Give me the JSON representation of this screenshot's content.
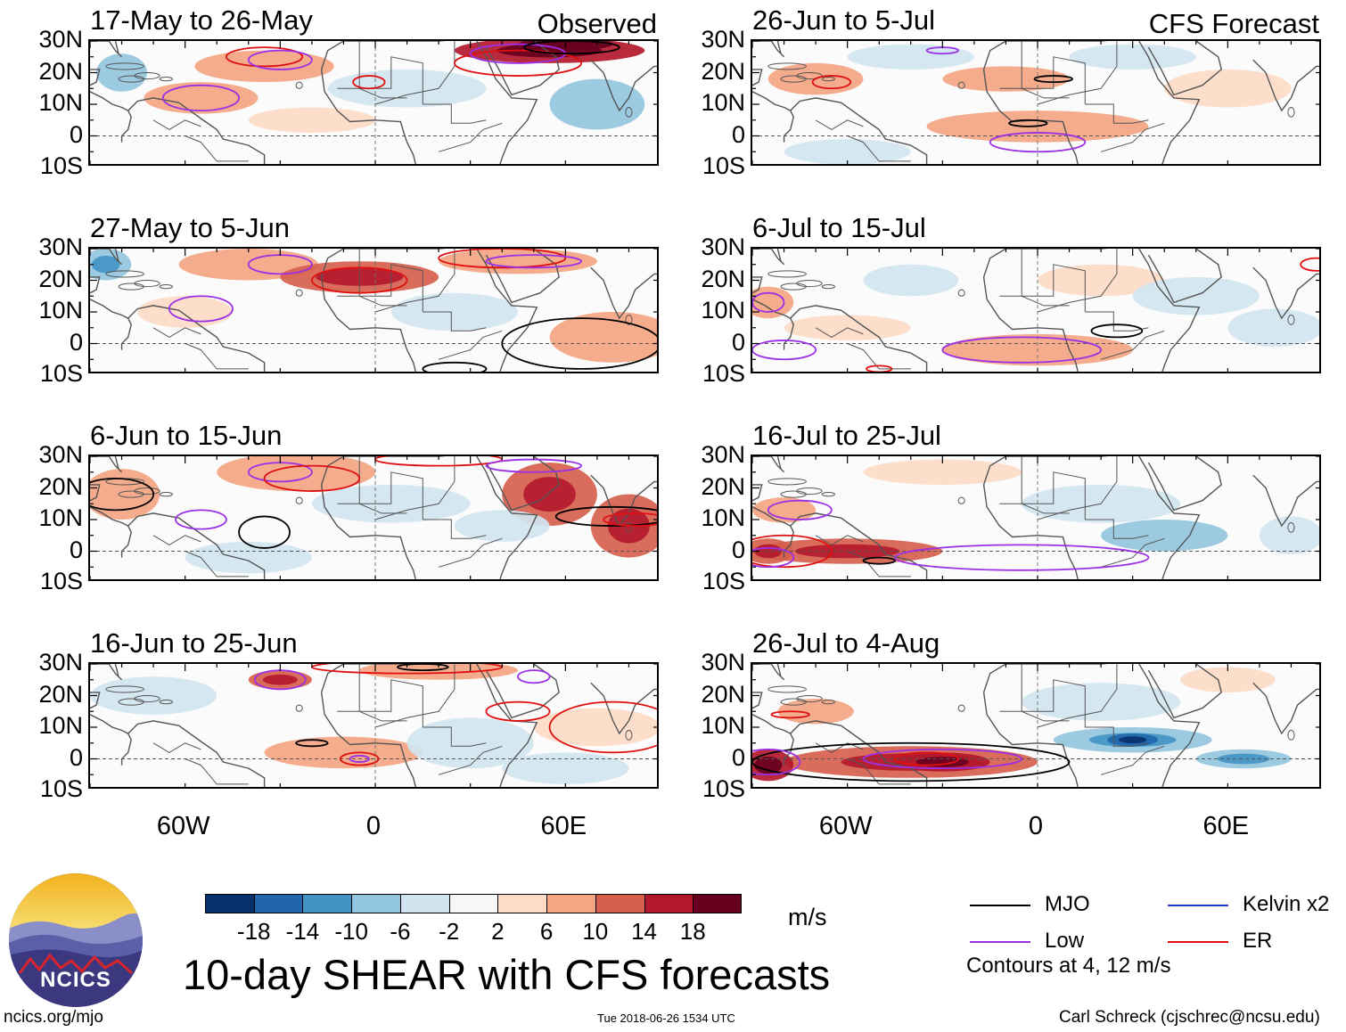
{
  "colors": {
    "mjo": "#000000",
    "low": "#9b30e6",
    "er": "#e01010",
    "kelvin": "#1a3ccc",
    "coast": "#555555"
  },
  "axis": {
    "lat_labels": [
      "30N",
      "20N",
      "10N",
      "0",
      "10S"
    ],
    "lon_labels": [
      "60W",
      "0",
      "60E"
    ]
  },
  "left_column_tag": "Observed",
  "right_column_tag": "CFS Forecast",
  "panels": [
    {
      "id": "p1",
      "title": "17-May to 26-May",
      "kind": "Observed"
    },
    {
      "id": "p2",
      "title": "27-May to 5-Jun",
      "kind": "Observed"
    },
    {
      "id": "p3",
      "title": "6-Jun to 15-Jun",
      "kind": "Observed"
    },
    {
      "id": "p4",
      "title": "16-Jun to 25-Jun",
      "kind": "Observed"
    },
    {
      "id": "p5",
      "title": "26-Jun to 5-Jul",
      "kind": "CFS Forecast"
    },
    {
      "id": "p6",
      "title": "6-Jul to 15-Jul",
      "kind": "CFS Forecast"
    },
    {
      "id": "p7",
      "title": "16-Jul to 25-Jul",
      "kind": "CFS Forecast"
    },
    {
      "id": "p8",
      "title": "26-Jul to 4-Aug",
      "kind": "CFS Forecast"
    }
  ],
  "chart_data": {
    "type": "heatmap",
    "title": "10-day SHEAR with CFS forecasts",
    "units": "m/s",
    "lon_range": [
      -90,
      90
    ],
    "lat_range": [
      -10,
      30
    ],
    "colorbar": {
      "tick_labels": [
        "-18",
        "-14",
        "-10",
        "-6",
        "-2",
        "2",
        "6",
        "10",
        "14",
        "18"
      ],
      "bins": [
        {
          "from": -22,
          "to": -18,
          "color": "#08306b"
        },
        {
          "from": -18,
          "to": -14,
          "color": "#2166ac"
        },
        {
          "from": -14,
          "to": -10,
          "color": "#4393c3"
        },
        {
          "from": -10,
          "to": -6,
          "color": "#92c5de"
        },
        {
          "from": -6,
          "to": -2,
          "color": "#d1e5f0"
        },
        {
          "from": -2,
          "to": 2,
          "color": "#f7f7f7"
        },
        {
          "from": 2,
          "to": 6,
          "color": "#fddbc7"
        },
        {
          "from": 6,
          "to": 10,
          "color": "#f4a582"
        },
        {
          "from": 10,
          "to": 14,
          "color": "#d6604d"
        },
        {
          "from": 14,
          "to": 18,
          "color": "#b2182b"
        },
        {
          "from": 18,
          "to": 22,
          "color": "#67001f"
        }
      ]
    },
    "legend": [
      {
        "name": "MJO",
        "color": "#000000"
      },
      {
        "name": "Kelvin x2",
        "color": "#1a3ccc"
      },
      {
        "name": "Low",
        "color": "#9b30e6"
      },
      {
        "name": "ER",
        "color": "#e01010"
      }
    ],
    "contour_note": "Contours at 4, 12 m/s",
    "anomaly_patches": {
      "p1": [
        {
          "lon": -35,
          "lat": 22,
          "rlon": 22,
          "rlat": 5,
          "v": 8
        },
        {
          "lon": -55,
          "lat": 12,
          "rlon": 18,
          "rlat": 5,
          "v": 6
        },
        {
          "lon": 55,
          "lat": 27,
          "rlon": 30,
          "rlat": 4,
          "v": 16
        },
        {
          "lon": 60,
          "lat": 29,
          "rlon": 15,
          "rlat": 2,
          "v": 20
        },
        {
          "lon": -80,
          "lat": 20,
          "rlon": 8,
          "rlat": 6,
          "v": -8
        },
        {
          "lon": 10,
          "lat": 15,
          "rlon": 25,
          "rlat": 6,
          "v": -4
        },
        {
          "lon": 70,
          "lat": 10,
          "rlon": 15,
          "rlat": 8,
          "v": -8
        },
        {
          "lon": -20,
          "lat": 5,
          "rlon": 20,
          "rlat": 4,
          "v": 4
        }
      ],
      "p2": [
        {
          "lon": -40,
          "lat": 25,
          "rlon": 22,
          "rlat": 5,
          "v": 8
        },
        {
          "lon": -5,
          "lat": 21,
          "rlon": 25,
          "rlat": 5,
          "v": 10
        },
        {
          "lon": 45,
          "lat": 26,
          "rlon": 25,
          "rlat": 4,
          "v": 8
        },
        {
          "lon": 75,
          "lat": 2,
          "rlon": 20,
          "rlat": 8,
          "v": 8
        },
        {
          "lon": -85,
          "lat": 25,
          "rlon": 8,
          "rlat": 5,
          "v": -10
        },
        {
          "lon": 25,
          "lat": 10,
          "rlon": 20,
          "rlat": 6,
          "v": -4
        },
        {
          "lon": -60,
          "lat": 10,
          "rlon": 15,
          "rlat": 5,
          "v": 4
        }
      ],
      "p3": [
        {
          "lon": -80,
          "lat": 18,
          "rlon": 12,
          "rlat": 8,
          "v": 8
        },
        {
          "lon": -25,
          "lat": 25,
          "rlon": 25,
          "rlat": 6,
          "v": 6
        },
        {
          "lon": 55,
          "lat": 18,
          "rlon": 15,
          "rlat": 10,
          "v": 10
        },
        {
          "lon": 80,
          "lat": 8,
          "rlon": 12,
          "rlat": 10,
          "v": 12
        },
        {
          "lon": 5,
          "lat": 15,
          "rlon": 25,
          "rlat": 6,
          "v": -6
        },
        {
          "lon": 40,
          "lat": 8,
          "rlon": 15,
          "rlat": 5,
          "v": -4
        },
        {
          "lon": -40,
          "lat": -2,
          "rlon": 20,
          "rlat": 5,
          "v": -4
        }
      ],
      "p4": [
        {
          "lon": -10,
          "lat": 2,
          "rlon": 25,
          "rlat": 5,
          "v": 8
        },
        {
          "lon": -30,
          "lat": 25,
          "rlon": 10,
          "rlat": 3,
          "v": 10
        },
        {
          "lon": 20,
          "lat": 28,
          "rlon": 25,
          "rlat": 3,
          "v": 6
        },
        {
          "lon": 70,
          "lat": 10,
          "rlon": 20,
          "rlat": 6,
          "v": 4
        },
        {
          "lon": -70,
          "lat": 20,
          "rlon": 20,
          "rlat": 6,
          "v": -4
        },
        {
          "lon": 30,
          "lat": 5,
          "rlon": 20,
          "rlat": 8,
          "v": -4
        },
        {
          "lon": 60,
          "lat": -3,
          "rlon": 20,
          "rlat": 5,
          "v": -6
        }
      ],
      "p5": [
        {
          "lon": -70,
          "lat": 18,
          "rlon": 15,
          "rlat": 5,
          "v": 8
        },
        {
          "lon": -10,
          "lat": 18,
          "rlon": 20,
          "rlat": 4,
          "v": 6
        },
        {
          "lon": 0,
          "lat": 3,
          "rlon": 35,
          "rlat": 5,
          "v": 6
        },
        {
          "lon": 60,
          "lat": 15,
          "rlon": 20,
          "rlat": 6,
          "v": 4
        },
        {
          "lon": -40,
          "lat": 25,
          "rlon": 20,
          "rlat": 4,
          "v": -4
        },
        {
          "lon": 30,
          "lat": 25,
          "rlon": 20,
          "rlat": 4,
          "v": -4
        },
        {
          "lon": -60,
          "lat": -5,
          "rlon": 20,
          "rlat": 4,
          "v": -4
        }
      ],
      "p6": [
        {
          "lon": -85,
          "lat": 13,
          "rlon": 8,
          "rlat": 5,
          "v": 8
        },
        {
          "lon": 0,
          "lat": -2,
          "rlon": 30,
          "rlat": 5,
          "v": 6
        },
        {
          "lon": -60,
          "lat": 5,
          "rlon": 20,
          "rlat": 4,
          "v": 4
        },
        {
          "lon": 20,
          "lat": 20,
          "rlon": 20,
          "rlat": 5,
          "v": 4
        },
        {
          "lon": -40,
          "lat": 20,
          "rlon": 15,
          "rlat": 5,
          "v": -4
        },
        {
          "lon": 75,
          "lat": 5,
          "rlon": 15,
          "rlat": 6,
          "v": -6
        },
        {
          "lon": 50,
          "lat": 15,
          "rlon": 20,
          "rlat": 6,
          "v": -4
        }
      ],
      "p7": [
        {
          "lon": -60,
          "lat": 0,
          "rlon": 30,
          "rlat": 4,
          "v": 10
        },
        {
          "lon": -85,
          "lat": 0,
          "rlon": 8,
          "rlat": 4,
          "v": 12
        },
        {
          "lon": -80,
          "lat": 13,
          "rlon": 10,
          "rlat": 4,
          "v": 8
        },
        {
          "lon": -30,
          "lat": 25,
          "rlon": 25,
          "rlat": 4,
          "v": 4
        },
        {
          "lon": 40,
          "lat": 5,
          "rlon": 20,
          "rlat": 5,
          "v": -8
        },
        {
          "lon": 20,
          "lat": 15,
          "rlon": 25,
          "rlat": 6,
          "v": -4
        },
        {
          "lon": 80,
          "lat": 5,
          "rlon": 10,
          "rlat": 6,
          "v": -6
        }
      ],
      "p8": [
        {
          "lon": -40,
          "lat": -1,
          "rlon": 40,
          "rlat": 5,
          "v": 12
        },
        {
          "lon": -30,
          "lat": -1,
          "rlon": 15,
          "rlat": 3,
          "v": 16
        },
        {
          "lon": -85,
          "lat": -2,
          "rlon": 8,
          "rlat": 5,
          "v": 14
        },
        {
          "lon": -70,
          "lat": 15,
          "rlon": 12,
          "rlat": 4,
          "v": 6
        },
        {
          "lon": 30,
          "lat": 6,
          "rlon": 25,
          "rlat": 4,
          "v": -10
        },
        {
          "lon": 30,
          "lat": 6,
          "rlon": 8,
          "rlat": 2,
          "v": -16
        },
        {
          "lon": 65,
          "lat": 0,
          "rlon": 15,
          "rlat": 3,
          "v": -10
        },
        {
          "lon": 20,
          "lat": 18,
          "rlon": 25,
          "rlat": 6,
          "v": -6
        },
        {
          "lon": 60,
          "lat": 25,
          "rlon": 15,
          "rlat": 4,
          "v": 4
        }
      ]
    },
    "contours": {
      "p1": [
        {
          "type": "ER",
          "lon": -35,
          "lat": 25,
          "rlon": 12,
          "rlat": 3
        },
        {
          "type": "Low",
          "lon": -30,
          "lat": 24,
          "rlon": 10,
          "rlat": 3
        },
        {
          "type": "Low",
          "lon": -55,
          "lat": 12,
          "rlon": 12,
          "rlat": 4
        },
        {
          "type": "ER",
          "lon": -2,
          "lat": 17,
          "rlon": 5,
          "rlat": 2
        },
        {
          "type": "ER",
          "lon": 45,
          "lat": 23,
          "rlon": 20,
          "rlat": 4
        },
        {
          "type": "Low",
          "lon": 45,
          "lat": 26,
          "rlon": 15,
          "rlat": 3
        },
        {
          "type": "MJO",
          "lon": 62,
          "lat": 28,
          "rlon": 15,
          "rlat": 2
        }
      ],
      "p2": [
        {
          "type": "Low",
          "lon": -30,
          "lat": 25,
          "rlon": 10,
          "rlat": 3
        },
        {
          "type": "Low",
          "lon": -55,
          "lat": 11,
          "rlon": 10,
          "rlat": 4
        },
        {
          "type": "ER",
          "lon": -5,
          "lat": 20,
          "rlon": 15,
          "rlat": 4
        },
        {
          "type": "ER",
          "lon": 40,
          "lat": 27,
          "rlon": 20,
          "rlat": 3
        },
        {
          "type": "Low",
          "lon": 50,
          "lat": 26,
          "rlon": 15,
          "rlat": 2
        },
        {
          "type": "MJO",
          "lon": 65,
          "lat": 0,
          "rlon": 25,
          "rlat": 8
        },
        {
          "type": "MJO",
          "lon": 25,
          "lat": -8,
          "rlon": 10,
          "rlat": 2
        }
      ],
      "p3": [
        {
          "type": "MJO",
          "lon": -82,
          "lat": 18,
          "rlon": 12,
          "rlat": 5
        },
        {
          "type": "Low",
          "lon": -55,
          "lat": 10,
          "rlon": 8,
          "rlat": 3
        },
        {
          "type": "MJO",
          "lon": -35,
          "lat": 6,
          "rlon": 8,
          "rlat": 5
        },
        {
          "type": "Low",
          "lon": -30,
          "lat": 25,
          "rlon": 10,
          "rlat": 3
        },
        {
          "type": "ER",
          "lon": -20,
          "lat": 23,
          "rlon": 15,
          "rlat": 4
        },
        {
          "type": "ER",
          "lon": 20,
          "lat": 29,
          "rlon": 20,
          "rlat": 2
        },
        {
          "type": "Low",
          "lon": 50,
          "lat": 27,
          "rlon": 15,
          "rlat": 2
        },
        {
          "type": "MJO",
          "lon": 75,
          "lat": 11,
          "rlon": 18,
          "rlat": 3
        },
        {
          "type": "ER",
          "lon": 82,
          "lat": 10,
          "rlon": 10,
          "rlat": 2
        }
      ],
      "p4": [
        {
          "type": "Low",
          "lon": -30,
          "lat": 25,
          "rlon": 8,
          "rlat": 3
        },
        {
          "type": "ER",
          "lon": 10,
          "lat": 29,
          "rlon": 30,
          "rlat": 2
        },
        {
          "type": "MJO",
          "lon": 15,
          "lat": 29,
          "rlon": 8,
          "rlat": 1
        },
        {
          "type": "Low",
          "lon": 50,
          "lat": 26,
          "rlon": 5,
          "rlat": 2
        },
        {
          "type": "ER",
          "lon": 45,
          "lat": 15,
          "rlon": 10,
          "rlat": 3
        },
        {
          "type": "ER",
          "lon": 75,
          "lat": 10,
          "rlon": 20,
          "rlat": 8
        },
        {
          "type": "MJO",
          "lon": -20,
          "lat": 5,
          "rlon": 5,
          "rlat": 1
        },
        {
          "type": "ER",
          "lon": -5,
          "lat": 0,
          "rlon": 6,
          "rlat": 2
        },
        {
          "type": "Low",
          "lon": -5,
          "lat": 0,
          "rlon": 3,
          "rlat": 1
        }
      ],
      "p5": [
        {
          "type": "Low",
          "lon": -30,
          "lat": 27,
          "rlon": 5,
          "rlat": 1
        },
        {
          "type": "ER",
          "lon": -65,
          "lat": 17,
          "rlon": 6,
          "rlat": 2
        },
        {
          "type": "MJO",
          "lon": 5,
          "lat": 18,
          "rlon": 6,
          "rlat": 1
        },
        {
          "type": "MJO",
          "lon": -3,
          "lat": 4,
          "rlon": 6,
          "rlat": 1
        },
        {
          "type": "Low",
          "lon": 0,
          "lat": -2,
          "rlon": 15,
          "rlat": 3
        }
      ],
      "p6": [
        {
          "type": "Low",
          "lon": -80,
          "lat": -2,
          "rlon": 10,
          "rlat": 3
        },
        {
          "type": "ER",
          "lon": -50,
          "lat": -8,
          "rlon": 4,
          "rlat": 1
        },
        {
          "type": "Low",
          "lon": -5,
          "lat": -2,
          "rlon": 25,
          "rlat": 4
        },
        {
          "type": "MJO",
          "lon": 25,
          "lat": 4,
          "rlon": 8,
          "rlat": 2
        },
        {
          "type": "ER",
          "lon": 88,
          "lat": 25,
          "rlon": 5,
          "rlat": 2
        },
        {
          "type": "Low",
          "lon": -85,
          "lat": 13,
          "rlon": 5,
          "rlat": 3
        }
      ],
      "p7": [
        {
          "type": "Low",
          "lon": -75,
          "lat": 13,
          "rlon": 10,
          "rlat": 3
        },
        {
          "type": "ER",
          "lon": -80,
          "lat": 0,
          "rlon": 15,
          "rlat": 5
        },
        {
          "type": "Low",
          "lon": -85,
          "lat": -2,
          "rlon": 8,
          "rlat": 3
        },
        {
          "type": "MJO",
          "lon": -50,
          "lat": -3,
          "rlon": 5,
          "rlat": 1
        },
        {
          "type": "Low",
          "lon": -5,
          "lat": -2,
          "rlon": 40,
          "rlat": 4
        }
      ],
      "p8": [
        {
          "type": "MJO",
          "lon": -40,
          "lat": -1,
          "rlon": 50,
          "rlat": 6
        },
        {
          "type": "Low",
          "lon": -30,
          "lat": 0,
          "rlon": 25,
          "rlat": 3
        },
        {
          "type": "ER",
          "lon": -35,
          "lat": 0,
          "rlon": 10,
          "rlat": 2
        },
        {
          "type": "Low",
          "lon": -85,
          "lat": -1,
          "rlon": 10,
          "rlat": 4
        },
        {
          "type": "ER",
          "lon": -78,
          "lat": 14,
          "rlon": 6,
          "rlat": 1
        }
      ]
    }
  },
  "footer": {
    "brand": "NCICS",
    "url": "ncics.org/mjo",
    "timestamp": "Tue 2018-06-26 1534 UTC",
    "author": "Carl Schreck (cjschrec@ncsu.edu)"
  }
}
